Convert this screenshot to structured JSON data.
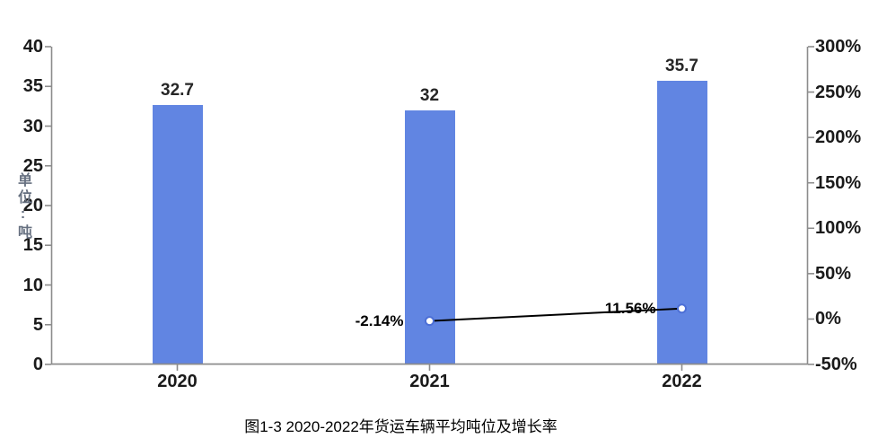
{
  "chart_data": {
    "type": "bar",
    "title": "图1-3 2020-2022年货运车辆平均吨位及增长率",
    "categories": [
      "2020",
      "2021",
      "2022"
    ],
    "series": [
      {
        "type": "bar",
        "axis": "left",
        "values": [
          32.7,
          32,
          35.7
        ],
        "labels": [
          "32.7",
          "32",
          "35.7"
        ],
        "color": "#6185E2"
      },
      {
        "type": "line",
        "axis": "right",
        "values": [
          null,
          -2.14,
          11.56
        ],
        "labels": [
          "-2.14%",
          "11.56%"
        ],
        "color": "#000000",
        "marker_color": "#4C6FD6"
      }
    ],
    "left_axis": {
      "title": "单位:吨",
      "min": 0,
      "max": 40,
      "step": 5,
      "ticks": [
        "40",
        "35",
        "30",
        "25",
        "20",
        "15",
        "10",
        "5",
        "0"
      ]
    },
    "right_axis": {
      "min": -50,
      "max": 300,
      "step": 50,
      "ticks": [
        "300%",
        "250%",
        "200%",
        "150%",
        "100%",
        "50%",
        "0%",
        "-50%"
      ]
    },
    "grid": false,
    "legend": "none"
  },
  "colors": {
    "bar": "#6185E2",
    "line": "#000000",
    "marker_stroke": "#4C6FD6",
    "axis_line": "#8C8C8C",
    "tick_label": "#1A1A1A",
    "axis_title": "#667080",
    "background": "#FFFFFF"
  }
}
